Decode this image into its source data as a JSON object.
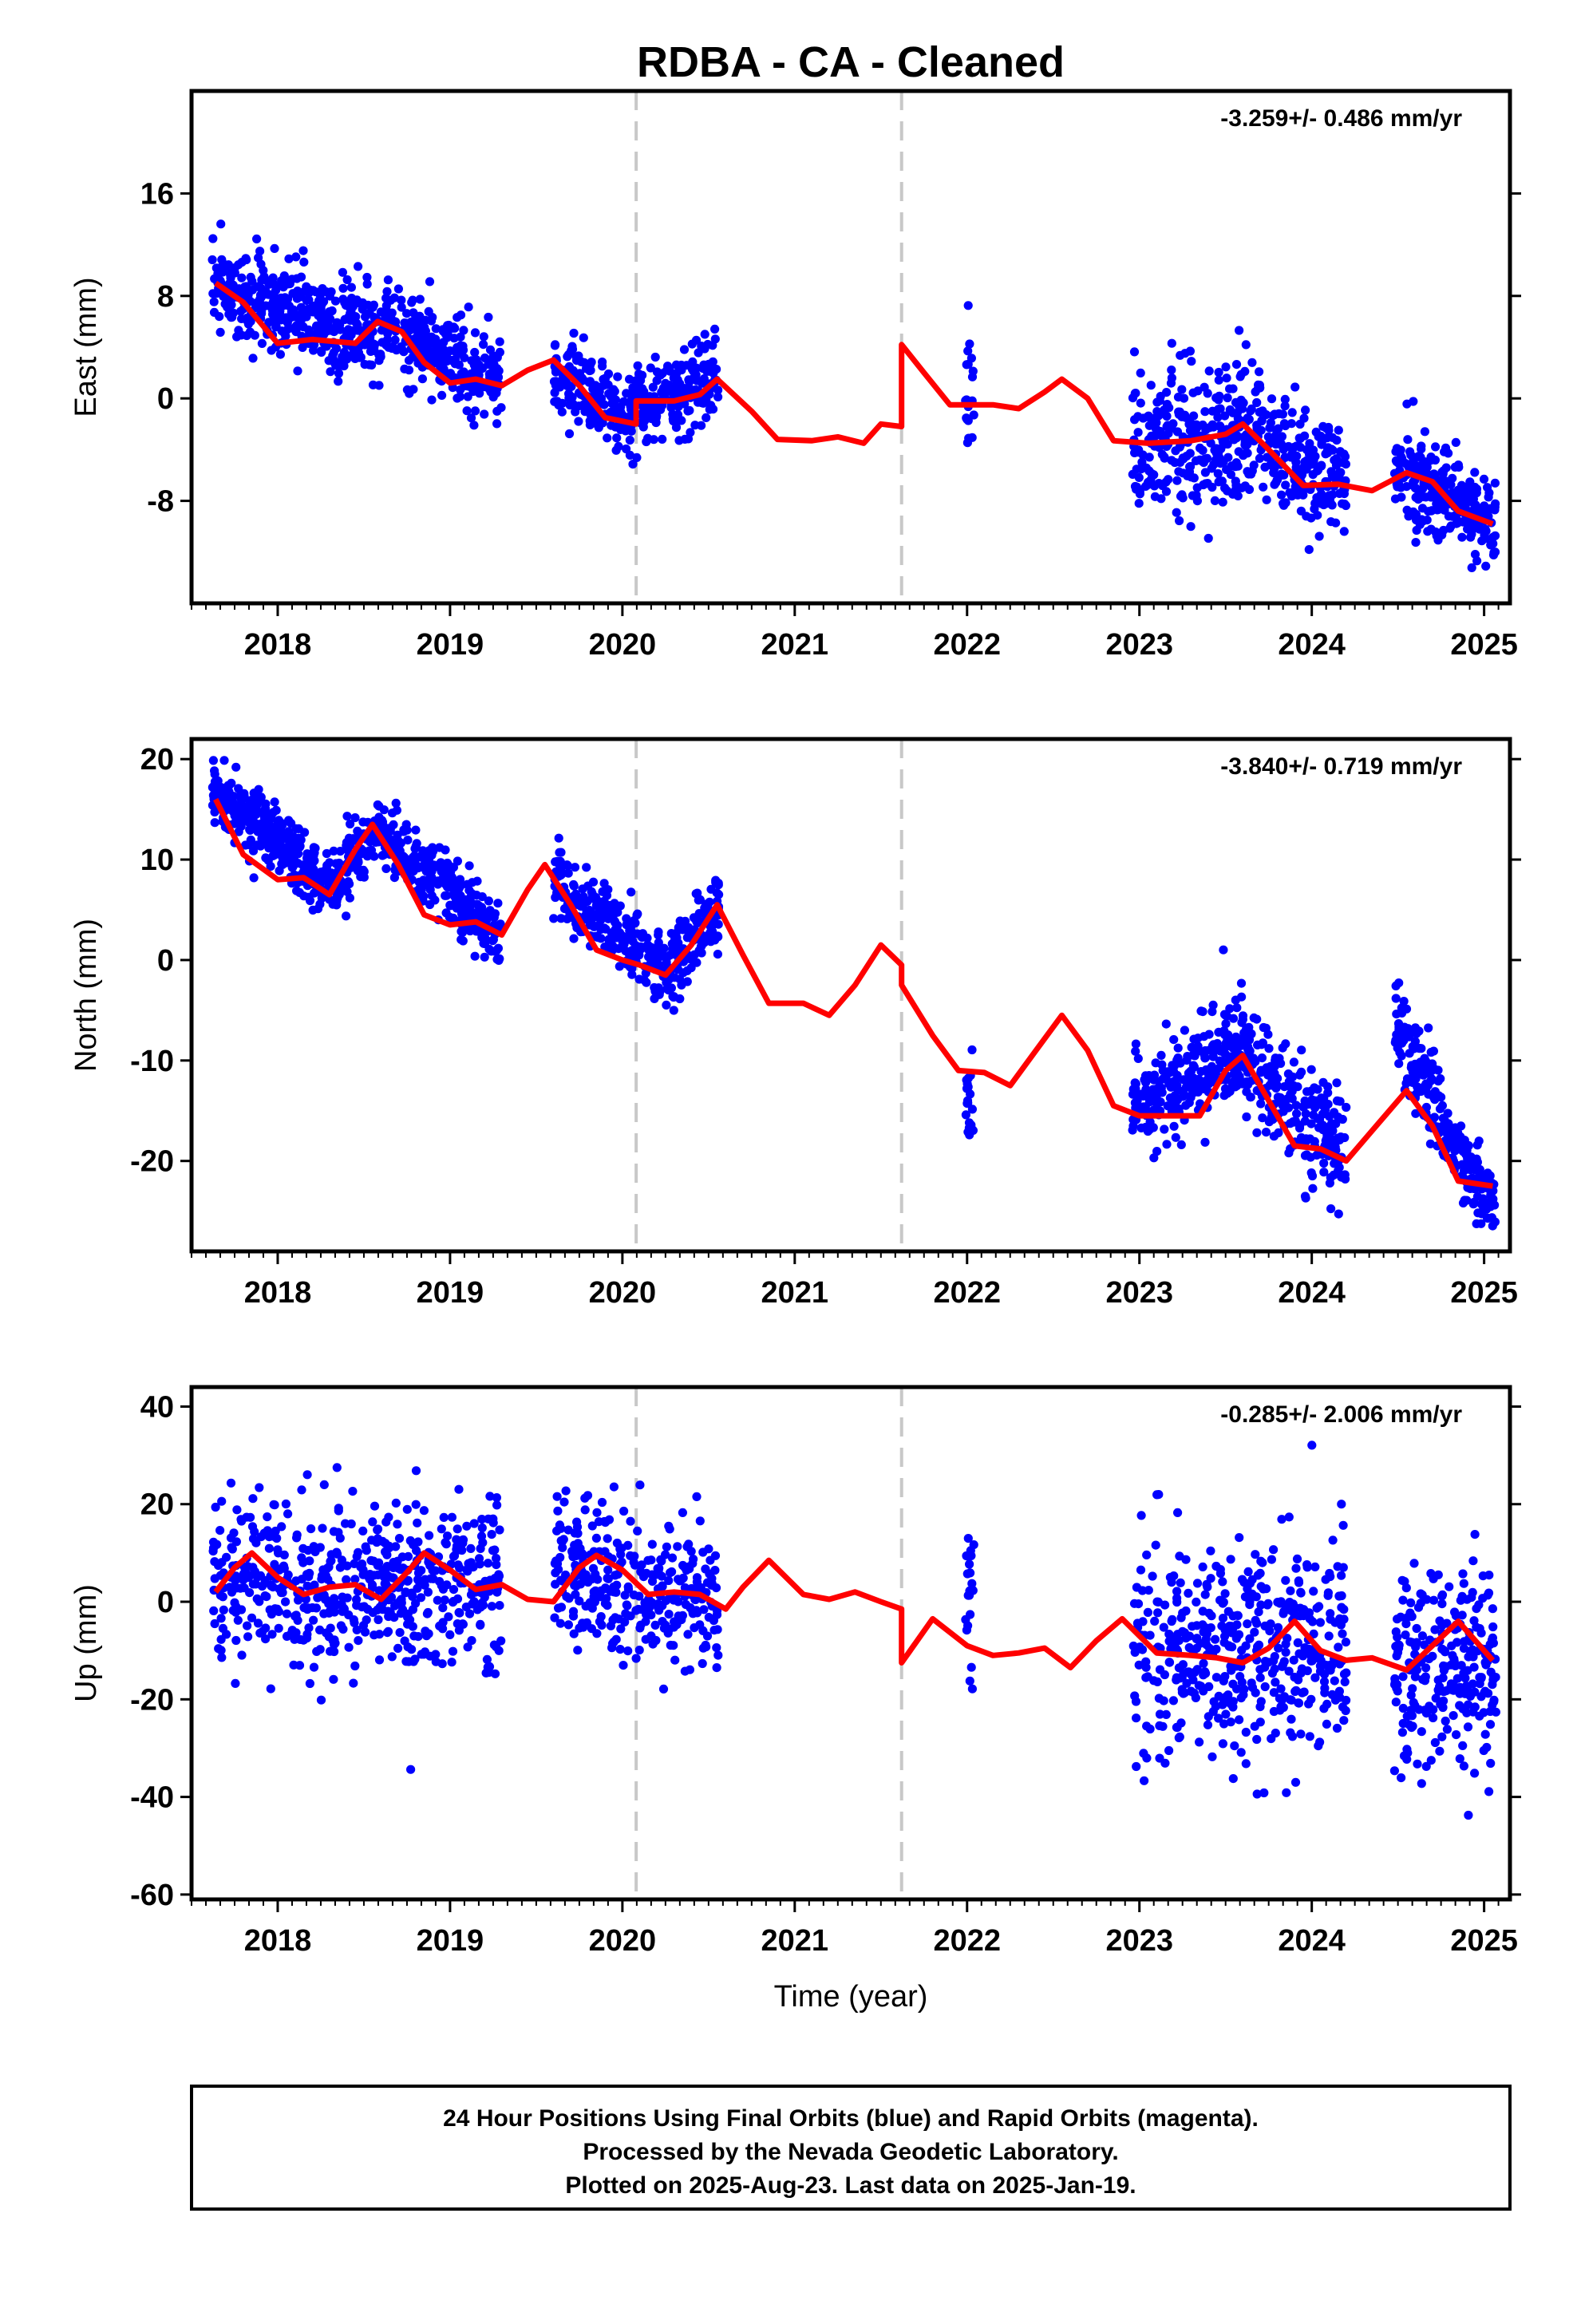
{
  "colors": {
    "points": "#0000ff",
    "model": "#ff0000",
    "steps": "#c8c8c8",
    "frame": "#000000"
  },
  "chart_data": {
    "type": "scatter",
    "title": "RDBA  - CA - Cleaned",
    "xlabel": "Time (year)",
    "xlim": [
      2017.5,
      2025.15
    ],
    "xticks": [
      "2018",
      "2019",
      "2020",
      "2021",
      "2022",
      "2023",
      "2024",
      "2025"
    ],
    "step_epochs": [
      2020.08,
      2021.62
    ],
    "panels": [
      {
        "ylabel": "East (mm)",
        "ylim": [
          -16,
          24
        ],
        "yticks": [
          "16",
          "8",
          "0",
          "-8"
        ],
        "rate": "-3.259+/- 0.486 mm/yr",
        "model": [
          [
            2017.64,
            9.0
          ],
          [
            2017.8,
            7.5
          ],
          [
            2018.0,
            4.3
          ],
          [
            2018.2,
            4.6
          ],
          [
            2018.45,
            4.3
          ],
          [
            2018.58,
            6.0
          ],
          [
            2018.72,
            5.2
          ],
          [
            2018.85,
            2.8
          ],
          [
            2019.0,
            1.2
          ],
          [
            2019.15,
            1.5
          ],
          [
            2019.3,
            1.0
          ],
          [
            2019.45,
            2.2
          ],
          [
            2019.6,
            3.0
          ],
          [
            2019.75,
            1.0
          ],
          [
            2019.9,
            -1.5
          ],
          [
            2020.08,
            -2.0
          ],
          [
            2020.08,
            -0.2
          ],
          [
            2020.3,
            -0.2
          ],
          [
            2020.45,
            0.3
          ],
          [
            2020.55,
            1.5
          ],
          [
            2020.75,
            -1.0
          ],
          [
            2020.9,
            -3.2
          ],
          [
            2021.1,
            -3.3
          ],
          [
            2021.25,
            -3.0
          ],
          [
            2021.4,
            -3.5
          ],
          [
            2021.5,
            -2.0
          ],
          [
            2021.62,
            -2.2
          ],
          [
            2021.62,
            4.2
          ],
          [
            2021.75,
            2.0
          ],
          [
            2021.9,
            -0.5
          ],
          [
            2022.15,
            -0.5
          ],
          [
            2022.3,
            -0.8
          ],
          [
            2022.45,
            0.5
          ],
          [
            2022.55,
            1.5
          ],
          [
            2022.7,
            0.0
          ],
          [
            2022.85,
            -3.3
          ],
          [
            2023.05,
            -3.5
          ],
          [
            2023.3,
            -3.3
          ],
          [
            2023.5,
            -2.8
          ],
          [
            2023.6,
            -2.0
          ],
          [
            2023.75,
            -4.0
          ],
          [
            2023.95,
            -6.8
          ],
          [
            2024.15,
            -6.7
          ],
          [
            2024.35,
            -7.2
          ],
          [
            2024.55,
            -5.8
          ],
          [
            2024.7,
            -6.5
          ],
          [
            2024.85,
            -8.8
          ],
          [
            2025.05,
            -9.8
          ]
        ],
        "points": [
          {
            "t": [
              2017.62,
              2018.6
            ],
            "center": [
              9,
              4.3
            ],
            "spread": 1.8,
            "n": 420
          },
          {
            "t": [
              2018.6,
              2019.3
            ],
            "center": [
              5.5,
              1.2
            ],
            "spread": 1.6,
            "n": 280
          },
          {
            "t": [
              2019.6,
              2020.08
            ],
            "center": [
              2.0,
              -2.0
            ],
            "spread": 1.5,
            "n": 190
          },
          {
            "t": [
              2020.08,
              2020.56
            ],
            "center": [
              -0.5,
              1.5
            ],
            "spread": 1.6,
            "n": 200
          },
          {
            "t": [
              2021.99,
              2022.04
            ],
            "center": [
              1.0,
              1.5
            ],
            "spread": 2.8,
            "n": 20
          },
          {
            "t": [
              2022.96,
              2023.6
            ],
            "center": [
              -3.5,
              -2.5
            ],
            "spread": 3.0,
            "n": 270
          },
          {
            "t": [
              2023.6,
              2024.2
            ],
            "center": [
              -2.5,
              -7.0
            ],
            "spread": 2.3,
            "n": 240
          },
          {
            "t": [
              2024.48,
              2025.07
            ],
            "center": [
              -5.5,
              -10.0
            ],
            "spread": 1.7,
            "n": 250
          }
        ]
      },
      {
        "ylabel": "North (mm)",
        "ylim": [
          -29,
          22
        ],
        "yticks": [
          "20",
          "10",
          "0",
          "-10",
          "-20"
        ],
        "rate": "-3.840+/- 0.719 mm/yr",
        "model": [
          [
            2017.64,
            16.0
          ],
          [
            2017.8,
            10.5
          ],
          [
            2018.0,
            8.0
          ],
          [
            2018.15,
            8.2
          ],
          [
            2018.3,
            6.5
          ],
          [
            2018.45,
            11.0
          ],
          [
            2018.55,
            13.5
          ],
          [
            2018.7,
            9.5
          ],
          [
            2018.85,
            4.5
          ],
          [
            2019.0,
            3.5
          ],
          [
            2019.15,
            3.8
          ],
          [
            2019.3,
            2.5
          ],
          [
            2019.45,
            7.0
          ],
          [
            2019.55,
            9.5
          ],
          [
            2019.7,
            5.5
          ],
          [
            2019.85,
            1.0
          ],
          [
            2020.0,
            0.0
          ],
          [
            2020.1,
            -0.5
          ],
          [
            2020.25,
            -1.5
          ],
          [
            2020.4,
            1.5
          ],
          [
            2020.55,
            5.5
          ],
          [
            2020.7,
            0.5
          ],
          [
            2020.85,
            -4.3
          ],
          [
            2021.05,
            -4.3
          ],
          [
            2021.2,
            -5.5
          ],
          [
            2021.35,
            -2.5
          ],
          [
            2021.5,
            1.5
          ],
          [
            2021.62,
            -0.5
          ],
          [
            2021.62,
            -2.5
          ],
          [
            2021.8,
            -7.5
          ],
          [
            2021.95,
            -11.0
          ],
          [
            2022.1,
            -11.2
          ],
          [
            2022.25,
            -12.5
          ],
          [
            2022.4,
            -9.0
          ],
          [
            2022.55,
            -5.5
          ],
          [
            2022.7,
            -9.0
          ],
          [
            2022.85,
            -14.5
          ],
          [
            2023.0,
            -15.5
          ],
          [
            2023.2,
            -15.5
          ],
          [
            2023.35,
            -15.5
          ],
          [
            2023.5,
            -11.0
          ],
          [
            2023.6,
            -9.5
          ],
          [
            2023.75,
            -14.0
          ],
          [
            2023.9,
            -18.5
          ],
          [
            2024.05,
            -18.8
          ],
          [
            2024.2,
            -20.0
          ],
          [
            2024.35,
            -17.0
          ],
          [
            2024.55,
            -13.0
          ],
          [
            2024.7,
            -16.5
          ],
          [
            2024.85,
            -22.0
          ],
          [
            2025.05,
            -22.5
          ]
        ],
        "points": [
          {
            "t": [
              2017.62,
              2018.3
            ],
            "center": [
              17,
              7.5
            ],
            "spread": 1.6,
            "n": 320
          },
          {
            "t": [
              2018.3,
              2018.6
            ],
            "center": [
              7,
              13.5
            ],
            "spread": 1.6,
            "n": 120
          },
          {
            "t": [
              2018.6,
              2019.3
            ],
            "center": [
              12.5,
              2.5
            ],
            "spread": 1.6,
            "n": 280
          },
          {
            "t": [
              2019.6,
              2020.3
            ],
            "center": [
              8.0,
              -1.5
            ],
            "spread": 1.7,
            "n": 270
          },
          {
            "t": [
              2020.3,
              2020.56
            ],
            "center": [
              -1.0,
              5.5
            ],
            "spread": 1.7,
            "n": 110
          },
          {
            "t": [
              2021.99,
              2022.04
            ],
            "center": [
              -12.0,
              -13.5
            ],
            "spread": 2.5,
            "n": 20
          },
          {
            "t": [
              2022.96,
              2023.55
            ],
            "center": [
              -15.5,
              -9.0
            ],
            "spread": 2.5,
            "n": 240
          },
          {
            "t": [
              2023.55,
              2024.2
            ],
            "center": [
              -8.5,
              -20.0
            ],
            "spread": 2.8,
            "n": 270
          },
          {
            "t": [
              2024.48,
              2024.75
            ],
            "center": [
              -6.5,
              -15.0
            ],
            "spread": 2.3,
            "n": 110
          },
          {
            "t": [
              2024.75,
              2025.07
            ],
            "center": [
              -16.5,
              -24.5
            ],
            "spread": 1.8,
            "n": 140
          }
        ]
      },
      {
        "ylabel": "Up (mm)",
        "ylim": [
          -61,
          44
        ],
        "yticks": [
          "40",
          "20",
          "0",
          "-20",
          "-40",
          "-60"
        ],
        "rate": "-0.285+/- 2.006 mm/yr",
        "model": [
          [
            2017.64,
            2.0
          ],
          [
            2017.75,
            7.0
          ],
          [
            2017.85,
            10.0
          ],
          [
            2018.0,
            5.0
          ],
          [
            2018.15,
            1.5
          ],
          [
            2018.3,
            3.0
          ],
          [
            2018.45,
            3.5
          ],
          [
            2018.6,
            0.5
          ],
          [
            2018.75,
            6.0
          ],
          [
            2018.85,
            10.0
          ],
          [
            2019.0,
            6.5
          ],
          [
            2019.15,
            2.5
          ],
          [
            2019.3,
            3.5
          ],
          [
            2019.45,
            0.5
          ],
          [
            2019.6,
            0.0
          ],
          [
            2019.75,
            7.0
          ],
          [
            2019.85,
            9.5
          ],
          [
            2020.0,
            6.5
          ],
          [
            2020.15,
            1.5
          ],
          [
            2020.3,
            2.0
          ],
          [
            2020.45,
            1.5
          ],
          [
            2020.6,
            -1.5
          ],
          [
            2020.7,
            3.0
          ],
          [
            2020.85,
            8.5
          ],
          [
            2021.05,
            1.5
          ],
          [
            2021.2,
            0.5
          ],
          [
            2021.35,
            2.0
          ],
          [
            2021.5,
            0.0
          ],
          [
            2021.62,
            -1.5
          ],
          [
            2021.62,
            -12.5
          ],
          [
            2021.8,
            -3.5
          ],
          [
            2022.0,
            -9.0
          ],
          [
            2022.15,
            -11.0
          ],
          [
            2022.3,
            -10.5
          ],
          [
            2022.45,
            -9.5
          ],
          [
            2022.6,
            -13.5
          ],
          [
            2022.75,
            -8.0
          ],
          [
            2022.9,
            -3.5
          ],
          [
            2023.1,
            -10.5
          ],
          [
            2023.3,
            -11.0
          ],
          [
            2023.45,
            -11.5
          ],
          [
            2023.6,
            -12.5
          ],
          [
            2023.75,
            -9.5
          ],
          [
            2023.9,
            -4.0
          ],
          [
            2024.05,
            -10.0
          ],
          [
            2024.2,
            -12.0
          ],
          [
            2024.35,
            -11.5
          ],
          [
            2024.55,
            -14.0
          ],
          [
            2024.7,
            -9.0
          ],
          [
            2024.85,
            -4.0
          ],
          [
            2025.05,
            -12.0
          ]
        ],
        "points": [
          {
            "t": [
              2017.62,
              2018.55
            ],
            "center": [
              5,
              2
            ],
            "spread": 8.5,
            "n": 300
          },
          {
            "t": [
              2018.55,
              2019.3
            ],
            "center": [
              4,
              4
            ],
            "spread": 8.0,
            "n": 280
          },
          {
            "t": [
              2019.6,
              2020.56
            ],
            "center": [
              8,
              -1
            ],
            "spread": 7.5,
            "n": 320
          },
          {
            "t": [
              2021.99,
              2022.04
            ],
            "center": [
              -2,
              2
            ],
            "spread": 7.5,
            "n": 22
          },
          {
            "t": [
              2022.96,
              2024.2
            ],
            "center": [
              -10,
              -10
            ],
            "spread": 11.0,
            "n": 460
          },
          {
            "t": [
              2024.48,
              2025.07
            ],
            "center": [
              -14,
              -12
            ],
            "spread": 10.5,
            "n": 250
          }
        ]
      }
    ]
  },
  "footer": {
    "line1": "24 Hour Positions Using Final Orbits (blue) and Rapid Orbits (magenta).",
    "line2": "Processed by the Nevada Geodetic Laboratory.",
    "line3": "Plotted on 2025-Aug-23. Last data on 2025-Jan-19."
  }
}
